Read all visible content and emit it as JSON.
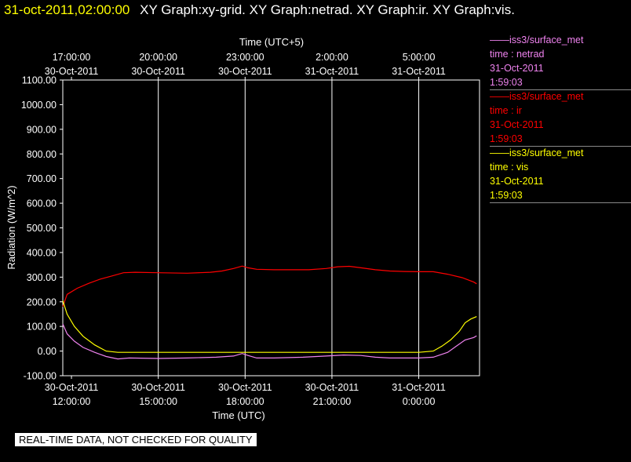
{
  "header": {
    "timestamp": "31-oct-2011,02:00:00",
    "graph_titles": "XY Graph:xy-grid.  XY Graph:netrad.  XY Graph:ir.  XY Graph:vis."
  },
  "legend": [
    {
      "source": "——iss3/surface_met",
      "variable": "time : netrad",
      "date": "31-Oct-2011",
      "time": "1:59:03",
      "color": "#ee82ee"
    },
    {
      "source": "——iss3/surface_met",
      "variable": "time : ir",
      "date": "31-Oct-2011",
      "time": "1:59:03",
      "color": "#ff0000"
    },
    {
      "source": "——iss3/surface_met",
      "variable": "time : vis",
      "date": "31-Oct-2011",
      "time": "1:59:03",
      "color": "#ffff00"
    }
  ],
  "disclaimer": "REAL-TIME DATA, NOT CHECKED FOR QUALITY",
  "chart_data": {
    "type": "line",
    "ylabel": "Radiation (W/m^2)",
    "xlabel": "Time (UTC)",
    "x2label": "Time (UTC+5)",
    "ylim": [
      -100,
      1100
    ],
    "xlim": [
      -0.3,
      14.1
    ],
    "x_unit": "hours after 30-Oct-2011 12:00 UTC",
    "yticks": [
      "1100.00",
      "1000.00",
      "900.00",
      "800.00",
      "700.00",
      "600.00",
      "500.00",
      "400.00",
      "300.00",
      "200.00",
      "100.00",
      "0.00",
      "-100.00"
    ],
    "ytick_values": [
      1100,
      1000,
      900,
      800,
      700,
      600,
      500,
      400,
      300,
      200,
      100,
      0,
      -100
    ],
    "xticks_bottom": [
      {
        "x": 0,
        "date": "30-Oct-2011",
        "time": "12:00:00"
      },
      {
        "x": 3,
        "date": "30-Oct-2011",
        "time": "15:00:00"
      },
      {
        "x": 6,
        "date": "30-Oct-2011",
        "time": "18:00:00"
      },
      {
        "x": 9,
        "date": "30-Oct-2011",
        "time": "21:00:00"
      },
      {
        "x": 12,
        "date": "31-Oct-2011",
        "time": "0:00:00"
      }
    ],
    "xticks_top": [
      {
        "x": 0,
        "time": "17:00:00",
        "date": "30-Oct-2011"
      },
      {
        "x": 3,
        "time": "20:00:00",
        "date": "30-Oct-2011"
      },
      {
        "x": 6,
        "time": "23:00:00",
        "date": "30-Oct-2011"
      },
      {
        "x": 9,
        "time": "2:00:00",
        "date": "31-Oct-2011"
      },
      {
        "x": 12,
        "time": "5:00:00",
        "date": "31-Oct-2011"
      }
    ],
    "grid": true,
    "series": [
      {
        "name": "time : ir",
        "color": "#ff0000",
        "points": [
          [
            -0.3,
            180
          ],
          [
            -0.15,
            230
          ],
          [
            0.2,
            255
          ],
          [
            0.6,
            275
          ],
          [
            1.0,
            292
          ],
          [
            1.4,
            305
          ],
          [
            1.8,
            318
          ],
          [
            2.2,
            320
          ],
          [
            3.0,
            318
          ],
          [
            4.0,
            316
          ],
          [
            4.8,
            320
          ],
          [
            5.2,
            325
          ],
          [
            5.6,
            335
          ],
          [
            5.9,
            345
          ],
          [
            6.1,
            338
          ],
          [
            6.4,
            332
          ],
          [
            7.0,
            330
          ],
          [
            7.6,
            330
          ],
          [
            8.2,
            330
          ],
          [
            8.8,
            335
          ],
          [
            9.2,
            342
          ],
          [
            9.6,
            344
          ],
          [
            10.0,
            338
          ],
          [
            10.5,
            330
          ],
          [
            11.0,
            325
          ],
          [
            11.5,
            323
          ],
          [
            12.0,
            322
          ],
          [
            12.5,
            322
          ],
          [
            13.0,
            312
          ],
          [
            13.5,
            298
          ],
          [
            13.9,
            280
          ],
          [
            14.0,
            273
          ]
        ]
      },
      {
        "name": "time : netrad",
        "color": "#ee82ee",
        "points": [
          [
            -0.3,
            110
          ],
          [
            -0.15,
            70
          ],
          [
            0.1,
            40
          ],
          [
            0.4,
            15
          ],
          [
            0.8,
            -5
          ],
          [
            1.2,
            -22
          ],
          [
            1.6,
            -32
          ],
          [
            2.0,
            -28
          ],
          [
            3.0,
            -30
          ],
          [
            4.0,
            -28
          ],
          [
            5.0,
            -25
          ],
          [
            5.6,
            -20
          ],
          [
            5.9,
            -10
          ],
          [
            6.1,
            -18
          ],
          [
            6.4,
            -28
          ],
          [
            7.0,
            -28
          ],
          [
            8.0,
            -25
          ],
          [
            8.8,
            -20
          ],
          [
            9.4,
            -16
          ],
          [
            10.0,
            -18
          ],
          [
            10.5,
            -25
          ],
          [
            11.0,
            -28
          ],
          [
            12.0,
            -28
          ],
          [
            12.5,
            -25
          ],
          [
            13.0,
            -5
          ],
          [
            13.3,
            20
          ],
          [
            13.6,
            45
          ],
          [
            13.9,
            55
          ],
          [
            14.0,
            62
          ]
        ]
      },
      {
        "name": "time : vis",
        "color": "#ffff00",
        "points": [
          [
            -0.3,
            205
          ],
          [
            -0.15,
            150
          ],
          [
            0.1,
            100
          ],
          [
            0.4,
            60
          ],
          [
            0.8,
            25
          ],
          [
            1.2,
            0
          ],
          [
            1.6,
            -5
          ],
          [
            4.0,
            -5
          ],
          [
            6.0,
            -5
          ],
          [
            8.0,
            -5
          ],
          [
            10.0,
            -5
          ],
          [
            12.0,
            -5
          ],
          [
            12.5,
            0
          ],
          [
            12.8,
            20
          ],
          [
            13.1,
            45
          ],
          [
            13.4,
            80
          ],
          [
            13.6,
            115
          ],
          [
            13.8,
            130
          ],
          [
            14.0,
            140
          ]
        ]
      }
    ]
  }
}
